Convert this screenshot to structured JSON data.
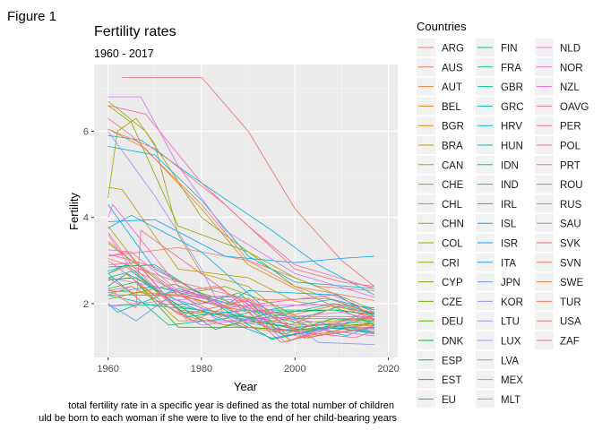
{
  "figure_label": "Figure 1",
  "caption_lines": [
    "total fertility rate in a specific year is defined as the total number of children",
    "uld be born to each woman if she were to live to the end of her child-bearing years"
  ],
  "chart_data": {
    "type": "line",
    "title": "Fertility rates",
    "subtitle": "1960 - 2017",
    "xlabel": "Year",
    "ylabel": "Fertility",
    "xlim": [
      1957,
      2022
    ],
    "ylim": [
      0.75,
      7.55
    ],
    "x_ticks": [
      1960,
      1980,
      2000,
      2020
    ],
    "y_ticks": [
      2,
      4,
      6
    ],
    "grid": true,
    "legend": {
      "title": "Countries",
      "position": "right",
      "columns": 3
    },
    "series": [
      {
        "name": "ARG",
        "color": "#F8766D",
        "x": [
          1960,
          1975,
          1990,
          2005,
          2017
        ],
        "y": [
          3.1,
          3.3,
          3.0,
          2.4,
          2.3
        ]
      },
      {
        "name": "AUS",
        "color": "#F37B59",
        "x": [
          1960,
          1965,
          1975,
          1985,
          2000,
          2008,
          2017
        ],
        "y": [
          3.45,
          3.0,
          2.2,
          1.9,
          1.75,
          1.95,
          1.75
        ]
      },
      {
        "name": "AUT",
        "color": "#ED8141",
        "x": [
          1960,
          1964,
          1975,
          1985,
          2000,
          2017
        ],
        "y": [
          2.7,
          2.85,
          1.85,
          1.5,
          1.36,
          1.5
        ]
      },
      {
        "name": "BEL",
        "color": "#E7861B",
        "x": [
          1960,
          1965,
          1975,
          1985,
          2000,
          2017
        ],
        "y": [
          2.55,
          2.6,
          1.75,
          1.5,
          1.65,
          1.65
        ]
      },
      {
        "name": "BGR",
        "color": "#DF8C00",
        "x": [
          1960,
          1975,
          1990,
          1997,
          2005,
          2017
        ],
        "y": [
          2.3,
          2.2,
          1.8,
          1.1,
          1.3,
          1.55
        ]
      },
      {
        "name": "BRA",
        "color": "#D89000",
        "x": [
          1960,
          1968,
          1980,
          1990,
          2000,
          2010,
          2017
        ],
        "y": [
          6.05,
          5.6,
          4.2,
          2.9,
          2.35,
          1.85,
          1.7
        ]
      },
      {
        "name": "CAN",
        "color": "#CF9400",
        "x": [
          1960,
          1965,
          1975,
          1990,
          2000,
          2017
        ],
        "y": [
          3.8,
          3.1,
          1.85,
          1.7,
          1.5,
          1.5
        ]
      },
      {
        "name": "CHE",
        "color": "#C49A00",
        "x": [
          1960,
          1964,
          1975,
          1990,
          2001,
          2017
        ],
        "y": [
          2.4,
          2.7,
          1.6,
          1.6,
          1.4,
          1.55
        ]
      },
      {
        "name": "CHL",
        "color": "#B9A000",
        "x": [
          1960,
          1963,
          1975,
          1990,
          2000,
          2017
        ],
        "y": [
          4.7,
          4.65,
          2.8,
          2.6,
          2.05,
          1.8
        ]
      },
      {
        "name": "CHN",
        "color": "#ABA300",
        "x": [
          1960,
          1962,
          1966,
          1970,
          1975,
          1980,
          1990,
          2000,
          2017
        ],
        "y": [
          4.45,
          6.0,
          6.3,
          5.7,
          3.6,
          2.7,
          2.4,
          1.55,
          1.65
        ]
      },
      {
        "name": "COL",
        "color": "#9DA700",
        "x": [
          1960,
          1968,
          1980,
          1990,
          2000,
          2017
        ],
        "y": [
          6.7,
          6.0,
          4.0,
          3.2,
          2.6,
          1.85
        ]
      },
      {
        "name": "CRI",
        "color": "#8EAB00",
        "x": [
          1960,
          1965,
          1975,
          1990,
          2000,
          2017
        ],
        "y": [
          6.6,
          6.2,
          3.8,
          3.2,
          2.4,
          1.75
        ]
      },
      {
        "name": "CYP",
        "color": "#7CAE00",
        "x": [
          1960,
          1975,
          1985,
          1995,
          2005,
          2017
        ],
        "y": [
          3.4,
          2.2,
          2.4,
          2.0,
          1.45,
          1.35
        ]
      },
      {
        "name": "CZE",
        "color": "#64B200",
        "x": [
          1960,
          1974,
          1990,
          1999,
          2010,
          2017
        ],
        "y": [
          2.1,
          2.45,
          1.9,
          1.15,
          1.5,
          1.7
        ]
      },
      {
        "name": "DEU",
        "color": "#45B600",
        "x": [
          1960,
          1966,
          1975,
          1990,
          2000,
          2017
        ],
        "y": [
          2.35,
          2.5,
          1.45,
          1.45,
          1.38,
          1.55
        ]
      },
      {
        "name": "DNK",
        "color": "#00B81F",
        "x": [
          1960,
          1966,
          1983,
          1995,
          2008,
          2017
        ],
        "y": [
          2.55,
          2.6,
          1.4,
          1.8,
          1.85,
          1.75
        ]
      },
      {
        "name": "ESP",
        "color": "#00BB4E",
        "x": [
          1960,
          1970,
          1980,
          1995,
          2008,
          2017
        ],
        "y": [
          2.85,
          2.9,
          2.2,
          1.17,
          1.45,
          1.3
        ]
      },
      {
        "name": "EST",
        "color": "#00BD5C",
        "x": [
          1960,
          1980,
          1988,
          1998,
          2008,
          2017
        ],
        "y": [
          1.95,
          2.0,
          2.25,
          1.3,
          1.65,
          1.6
        ]
      },
      {
        "name": "EU",
        "color": "#00BE6C",
        "x": [
          1960,
          1965,
          1975,
          1990,
          2000,
          2017
        ],
        "y": [
          2.6,
          2.75,
          1.95,
          1.6,
          1.45,
          1.6
        ]
      },
      {
        "name": "FIN",
        "color": "#00C08B",
        "x": [
          1960,
          1973,
          1985,
          1992,
          2010,
          2017
        ],
        "y": [
          2.7,
          1.5,
          1.65,
          1.85,
          1.85,
          1.5
        ]
      },
      {
        "name": "FRA",
        "color": "#00C19A",
        "x": [
          1960,
          1964,
          1976,
          1993,
          2008,
          2017
        ],
        "y": [
          2.75,
          2.9,
          1.8,
          1.65,
          2.0,
          1.9
        ]
      },
      {
        "name": "GBR",
        "color": "#00C1A7",
        "x": [
          1960,
          1964,
          1977,
          1990,
          2001,
          2010,
          2017
        ],
        "y": [
          2.7,
          2.9,
          1.7,
          1.85,
          1.65,
          1.95,
          1.75
        ]
      },
      {
        "name": "GRC",
        "color": "#00C0B5",
        "x": [
          1960,
          1970,
          1981,
          1998,
          2008,
          2017
        ],
        "y": [
          2.25,
          2.4,
          2.1,
          1.25,
          1.5,
          1.35
        ]
      },
      {
        "name": "HRV",
        "color": "#00BEC2",
        "x": [
          1960,
          1970,
          1985,
          2000,
          2017
        ],
        "y": [
          2.2,
          1.95,
          1.8,
          1.4,
          1.45
        ]
      },
      {
        "name": "HUN",
        "color": "#00BCCE",
        "x": [
          1960,
          1962,
          1975,
          1990,
          2011,
          2017
        ],
        "y": [
          2.0,
          1.8,
          2.35,
          1.85,
          1.25,
          1.5
        ]
      },
      {
        "name": "IDN",
        "color": "#00B8DA",
        "x": [
          1960,
          1970,
          1980,
          1990,
          2000,
          2017
        ],
        "y": [
          5.65,
          5.45,
          4.4,
          3.1,
          2.5,
          2.35
        ]
      },
      {
        "name": "IND",
        "color": "#00B4E4",
        "x": [
          1960,
          1967,
          1980,
          1995,
          2005,
          2017
        ],
        "y": [
          5.9,
          5.8,
          4.8,
          3.7,
          2.9,
          2.2
        ]
      },
      {
        "name": "IRL",
        "color": "#00AFEF",
        "x": [
          1960,
          1965,
          1980,
          1994,
          2008,
          2017
        ],
        "y": [
          3.75,
          4.05,
          3.2,
          1.85,
          2.1,
          1.85
        ]
      },
      {
        "name": "ISL",
        "color": "#00A9FB",
        "x": [
          1960,
          1970,
          1985,
          1990,
          2009,
          2017
        ],
        "y": [
          4.3,
          2.8,
          1.95,
          2.3,
          2.2,
          1.7
        ]
      },
      {
        "name": "ISR",
        "color": "#00A4FF",
        "x": [
          1960,
          1970,
          1985,
          2000,
          2010,
          2017
        ],
        "y": [
          3.9,
          3.95,
          3.1,
          2.95,
          3.05,
          3.1
        ]
      },
      {
        "name": "ITA",
        "color": "#1B9EFF",
        "x": [
          1960,
          1964,
          1977,
          1995,
          2008,
          2017
        ],
        "y": [
          2.4,
          2.7,
          1.95,
          1.2,
          1.45,
          1.32
        ]
      },
      {
        "name": "JPN",
        "color": "#6A98FF",
        "x": [
          1960,
          1966,
          1973,
          1990,
          2005,
          2017
        ],
        "y": [
          2.0,
          1.6,
          2.15,
          1.55,
          1.26,
          1.43
        ]
      },
      {
        "name": "KOR",
        "color": "#8E92FF",
        "x": [
          1960,
          1970,
          1980,
          1985,
          2000,
          2005,
          2017
        ],
        "y": [
          6.0,
          4.5,
          2.8,
          1.7,
          1.5,
          1.1,
          1.05
        ]
      },
      {
        "name": "LTU",
        "color": "#A98BFC",
        "x": [
          1960,
          1985,
          1990,
          2002,
          2015,
          2017
        ],
        "y": [
          2.6,
          2.1,
          2.05,
          1.25,
          1.7,
          1.63
        ]
      },
      {
        "name": "LUX",
        "color": "#BC84F7",
        "x": [
          1960,
          1965,
          1980,
          1995,
          2017
        ],
        "y": [
          2.3,
          2.4,
          1.5,
          1.7,
          1.4
        ]
      },
      {
        "name": "LVA",
        "color": "#CB7CF2",
        "x": [
          1960,
          1987,
          1998,
          2015,
          2017
        ],
        "y": [
          1.95,
          2.2,
          1.1,
          1.7,
          1.7
        ]
      },
      {
        "name": "MEX",
        "color": "#D774ED",
        "x": [
          1960,
          1967,
          1975,
          1985,
          2000,
          2017
        ],
        "y": [
          6.8,
          6.8,
          5.2,
          3.7,
          2.7,
          2.15
        ]
      },
      {
        "name": "MLT",
        "color": "#E36EE5",
        "x": [
          1960,
          1965,
          1980,
          1990,
          2005,
          2017
        ],
        "y": [
          3.6,
          2.8,
          2.0,
          2.05,
          1.4,
          1.25
        ]
      },
      {
        "name": "NLD",
        "color": "#EC69DC",
        "x": [
          1960,
          1964,
          1977,
          1990,
          2010,
          2017
        ],
        "y": [
          3.1,
          3.2,
          1.6,
          1.6,
          1.8,
          1.62
        ]
      },
      {
        "name": "NOR",
        "color": "#F265D1",
        "x": [
          1960,
          1966,
          1983,
          1990,
          2009,
          2017
        ],
        "y": [
          2.9,
          2.95,
          1.65,
          1.95,
          1.98,
          1.62
        ]
      },
      {
        "name": "NZL",
        "color": "#F763C6",
        "x": [
          1960,
          1961,
          1975,
          1985,
          2008,
          2017
        ],
        "y": [
          4.0,
          4.3,
          2.4,
          1.9,
          2.2,
          1.8
        ]
      },
      {
        "name": "OAVG",
        "color": "#FA62BB",
        "x": [
          1960,
          1965,
          1975,
          1990,
          2000,
          2017
        ],
        "y": [
          3.25,
          3.2,
          2.3,
          1.9,
          1.7,
          1.7
        ]
      },
      {
        "name": "PER",
        "color": "#FC62AE",
        "x": [
          1960,
          1968,
          1980,
          1990,
          2000,
          2017
        ],
        "y": [
          6.6,
          6.4,
          4.8,
          3.8,
          2.9,
          2.35
        ]
      },
      {
        "name": "POL",
        "color": "#FD62A2",
        "x": [
          1960,
          1970,
          1983,
          2003,
          2017
        ],
        "y": [
          3.0,
          2.2,
          2.4,
          1.22,
          1.45
        ]
      },
      {
        "name": "PRT",
        "color": "#FD6295",
        "x": [
          1960,
          1970,
          1980,
          1995,
          2013,
          2017
        ],
        "y": [
          3.15,
          2.85,
          2.2,
          1.4,
          1.21,
          1.37
        ]
      },
      {
        "name": "ROU",
        "color": "#FB6587",
        "x": [
          1960,
          1966,
          1967,
          1985,
          1995,
          2017
        ],
        "y": [
          2.35,
          1.9,
          3.7,
          2.3,
          1.35,
          1.7
        ]
      },
      {
        "name": "RUS",
        "color": "#F8697A",
        "x": [
          1960,
          1966,
          1988,
          1999,
          2015,
          2017
        ],
        "y": [
          2.6,
          2.2,
          2.15,
          1.15,
          1.78,
          1.62
        ]
      },
      {
        "name": "SAU",
        "color": "#F4716D",
        "x": [
          1963,
          1980,
          1990,
          2000,
          2010,
          2017
        ],
        "y": [
          7.25,
          7.25,
          6.0,
          4.2,
          3.0,
          2.4
        ]
      },
      {
        "name": "SVK",
        "color": "#EE785F",
        "x": [
          1960,
          1975,
          1990,
          2002,
          2017
        ],
        "y": [
          3.05,
          2.5,
          2.1,
          1.2,
          1.48
        ]
      },
      {
        "name": "SVN",
        "color": "#E87E51",
        "x": [
          1960,
          1975,
          1990,
          2003,
          2017
        ],
        "y": [
          2.2,
          2.2,
          1.45,
          1.2,
          1.6
        ]
      },
      {
        "name": "SWE",
        "color": "#E18444",
        "x": [
          1960,
          1965,
          1978,
          1990,
          1999,
          2010,
          2017
        ],
        "y": [
          2.2,
          2.4,
          1.6,
          2.13,
          1.5,
          1.98,
          1.78
        ]
      },
      {
        "name": "TUR",
        "color": "#F8766D",
        "x": [
          1960,
          1965,
          1980,
          1990,
          2000,
          2017
        ],
        "y": [
          6.3,
          5.9,
          4.3,
          3.0,
          2.4,
          2.07
        ]
      },
      {
        "name": "USA",
        "color": "#F2726B",
        "x": [
          1960,
          1965,
          1976,
          1990,
          2007,
          2017
        ],
        "y": [
          3.65,
          2.9,
          1.75,
          2.08,
          2.12,
          1.77
        ]
      },
      {
        "name": "ZAF",
        "color": "#F56E76",
        "x": [
          1960,
          1970,
          1985,
          2000,
          2010,
          2017
        ],
        "y": [
          6.05,
          5.6,
          4.3,
          2.8,
          2.5,
          2.4
        ]
      }
    ]
  }
}
